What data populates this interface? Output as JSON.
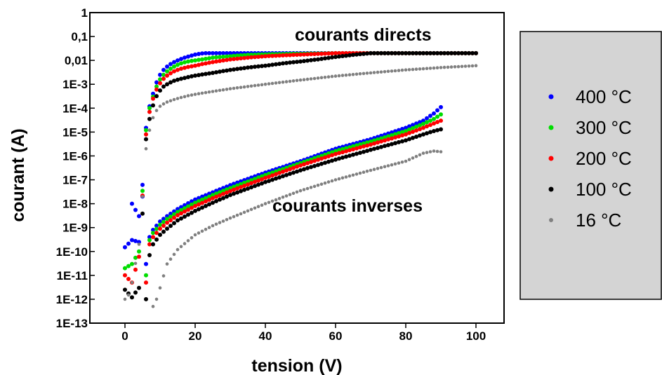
{
  "chart_data": {
    "type": "scatter",
    "title": "",
    "xlabel": "tension (V)",
    "ylabel": "courant (A)",
    "xlim": [
      -10,
      108
    ],
    "ylim_log10": [
      -13,
      0
    ],
    "yscale": "log",
    "x_ticks": [
      0,
      20,
      40,
      60,
      80,
      100
    ],
    "x_tick_labels": [
      "0",
      "20",
      "40",
      "60",
      "80",
      "100"
    ],
    "y_ticks_log10": [
      0,
      -1,
      -2,
      -3,
      -4,
      -5,
      -6,
      -7,
      -8,
      -9,
      -10,
      -11,
      -12,
      -13
    ],
    "y_tick_labels": [
      "1",
      "0,1",
      "0,01",
      "1E-3",
      "1E-4",
      "1E-5",
      "1E-6",
      "1E-7",
      "1E-8",
      "1E-9",
      "1E-10",
      "1E-11",
      "1E-12",
      "1E-13"
    ],
    "grid": false,
    "legend_position": "right",
    "annotations": [
      "courants directs",
      "courants inverses"
    ],
    "series": [
      {
        "name": "400 °C",
        "color": "#0000ff",
        "direct": {
          "x": [
            0,
            2,
            4,
            6,
            7,
            8,
            9,
            10,
            11,
            12,
            13,
            14,
            15,
            16,
            17,
            18,
            19,
            20,
            21,
            22,
            23,
            24,
            25,
            30,
            40,
            50,
            60,
            70,
            80,
            90,
            100
          ],
          "y": [
            1.5e-10,
            3e-10,
            2.5e-10,
            1.5e-05,
            0.00012,
            0.0004,
            0.0012,
            0.0025,
            0.004,
            0.0055,
            0.007,
            0.0085,
            0.01,
            0.0115,
            0.013,
            0.0145,
            0.016,
            0.0175,
            0.0185,
            0.0195,
            0.02,
            0.02,
            0.02,
            0.02,
            0.02,
            0.02,
            0.02,
            0.02,
            0.02,
            0.02,
            0.02
          ]
        },
        "inverse": {
          "x": [
            2,
            4,
            5,
            6,
            7,
            8,
            10,
            12,
            15,
            20,
            25,
            30,
            40,
            50,
            60,
            70,
            80,
            85,
            88,
            90
          ],
          "y": [
            1e-08,
            3e-09,
            2e-08,
            3e-11,
            4e-10,
            8e-10,
            1.8e-09,
            3e-09,
            6e-09,
            1.5e-08,
            3e-08,
            6e-08,
            2e-07,
            6e-07,
            2e-06,
            5e-06,
            1.5e-05,
            3e-05,
            6e-05,
            0.00011
          ]
        }
      },
      {
        "name": "300 °C",
        "color": "#00dd00",
        "direct": {
          "x": [
            0,
            2,
            4,
            6,
            7,
            8,
            9,
            10,
            11,
            12,
            13,
            14,
            15,
            16,
            17,
            18,
            20,
            22,
            25,
            30,
            35,
            40,
            50,
            60,
            70,
            80,
            90,
            100
          ],
          "y": [
            2e-11,
            3e-11,
            1e-10,
            1.2e-05,
            0.0001,
            0.0003,
            0.0008,
            0.0016,
            0.0025,
            0.0035,
            0.0045,
            0.0055,
            0.0065,
            0.0075,
            0.0083,
            0.009,
            0.01,
            0.011,
            0.013,
            0.015,
            0.017,
            0.018,
            0.019,
            0.02,
            0.02,
            0.02,
            0.02,
            0.02
          ]
        },
        "inverse": {
          "x": [
            6,
            7,
            8,
            10,
            12,
            15,
            20,
            25,
            30,
            40,
            50,
            60,
            70,
            80,
            85,
            88,
            90
          ],
          "y": [
            1e-11,
            3e-10,
            6e-10,
            1.3e-09,
            2.3e-09,
            4.5e-09,
            1.1e-08,
            2.3e-08,
            4.5e-08,
            1.6e-07,
            5e-07,
            1.6e-06,
            4e-06,
            1.1e-05,
            2.2e-05,
            3.5e-05,
            5.5e-05
          ]
        }
      },
      {
        "name": "200 °C",
        "color": "#ff0000",
        "direct": {
          "x": [
            0,
            2,
            4,
            6,
            7,
            8,
            9,
            10,
            11,
            12,
            13,
            14,
            15,
            16,
            18,
            20,
            22,
            25,
            30,
            35,
            40,
            50,
            60,
            70,
            80,
            90,
            100
          ],
          "y": [
            1e-11,
            5e-12,
            6e-11,
            8e-06,
            7e-05,
            0.00025,
            0.0006,
            0.0011,
            0.0017,
            0.0023,
            0.0029,
            0.0035,
            0.004,
            0.0045,
            0.0053,
            0.006,
            0.007,
            0.0085,
            0.011,
            0.013,
            0.015,
            0.0175,
            0.02,
            0.02,
            0.02,
            0.02,
            0.02
          ]
        },
        "inverse": {
          "x": [
            6,
            7,
            8,
            10,
            12,
            15,
            20,
            25,
            30,
            40,
            50,
            60,
            70,
            80,
            85,
            88,
            90
          ],
          "y": [
            5e-12,
            2e-10,
            4e-10,
            9e-10,
            1.6e-09,
            3.3e-09,
            8e-09,
            1.7e-08,
            3.4e-08,
            1.2e-07,
            4e-07,
            1.2e-06,
            3e-06,
            8e-06,
            1.5e-05,
            2.3e-05,
            3e-05
          ]
        }
      },
      {
        "name": "100 °C",
        "color": "#000000",
        "direct": {
          "x": [
            0,
            2,
            4,
            6,
            7,
            8,
            9,
            10,
            11,
            12,
            13,
            14,
            16,
            18,
            20,
            25,
            30,
            35,
            40,
            45,
            50,
            55,
            60,
            65,
            70,
            80,
            90,
            100
          ],
          "y": [
            2.5e-12,
            1.2e-12,
            3e-12,
            5e-06,
            3.5e-05,
            0.00013,
            0.00032,
            0.00055,
            0.0008,
            0.001,
            0.0012,
            0.0014,
            0.0017,
            0.002,
            0.0023,
            0.003,
            0.004,
            0.005,
            0.006,
            0.0075,
            0.009,
            0.011,
            0.014,
            0.017,
            0.02,
            0.02,
            0.02,
            0.02
          ]
        },
        "inverse": {
          "x": [
            6,
            7,
            8,
            10,
            12,
            15,
            20,
            25,
            30,
            40,
            50,
            60,
            70,
            80,
            85,
            88,
            90
          ],
          "y": [
            1e-12,
            7e-11,
            2e-10,
            5e-10,
            9e-10,
            2e-09,
            5e-09,
            1.1e-08,
            2.3e-08,
            8e-08,
            2.5e-07,
            7e-07,
            1.8e-06,
            4.5e-06,
            8e-06,
            1.1e-05,
            1.3e-05
          ]
        }
      },
      {
        "name": "16 °C",
        "color": "#808080",
        "direct": {
          "x": [
            0,
            1,
            2,
            4,
            6,
            7,
            8,
            9,
            10,
            11,
            12,
            14,
            16,
            18,
            20,
            25,
            30,
            40,
            50,
            60,
            70,
            80,
            90,
            100
          ],
          "y": [
            1e-12,
            1.5e-12,
            5e-12,
            2e-10,
            2e-06,
            1.2e-05,
            4e-05,
            8e-05,
            0.00012,
            0.00015,
            0.00018,
            0.00023,
            0.00028,
            0.00033,
            0.00038,
            0.0005,
            0.00065,
            0.001,
            0.0015,
            0.0022,
            0.003,
            0.004,
            0.005,
            0.006
          ]
        },
        "inverse": {
          "x": [
            8,
            9,
            10,
            12,
            15,
            20,
            25,
            30,
            40,
            50,
            60,
            70,
            80,
            85,
            88,
            90
          ],
          "y": [
            5e-13,
            1e-12,
            3e-12,
            3e-11,
            1.2e-10,
            5e-10,
            1.2e-09,
            2.5e-09,
            1e-08,
            3.5e-08,
            1e-07,
            2.5e-07,
            6e-07,
            1.3e-06,
            1.6e-06,
            1.5e-06
          ]
        }
      }
    ]
  }
}
